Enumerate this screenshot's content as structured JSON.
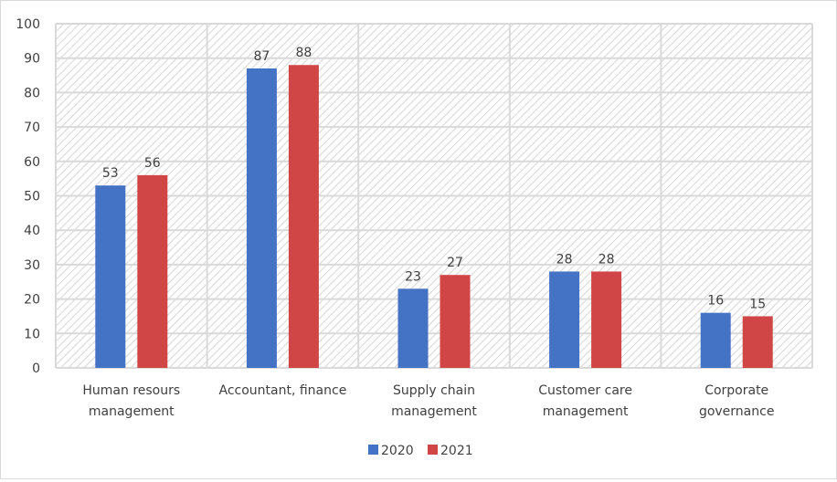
{
  "chart_data": {
    "type": "bar",
    "title": "",
    "xlabel": "",
    "ylabel": "",
    "categories": [
      [
        "Human resours",
        "management"
      ],
      [
        "Accountant, finance"
      ],
      [
        "Supply chain",
        "management"
      ],
      [
        "Customer care",
        "management"
      ],
      [
        "Corporate",
        "governance"
      ]
    ],
    "series": [
      {
        "name": "2020",
        "color": "#4472c4",
        "values": [
          53,
          87,
          23,
          28,
          16
        ]
      },
      {
        "name": "2021",
        "color": "#d04545",
        "values": [
          56,
          88,
          27,
          28,
          15
        ]
      }
    ],
    "ylim": [
      0,
      100
    ],
    "yticks": [
      0,
      10,
      20,
      30,
      40,
      50,
      60,
      70,
      80,
      90,
      100
    ],
    "grid": true,
    "data_labels": true,
    "legend_position": "bottom"
  }
}
